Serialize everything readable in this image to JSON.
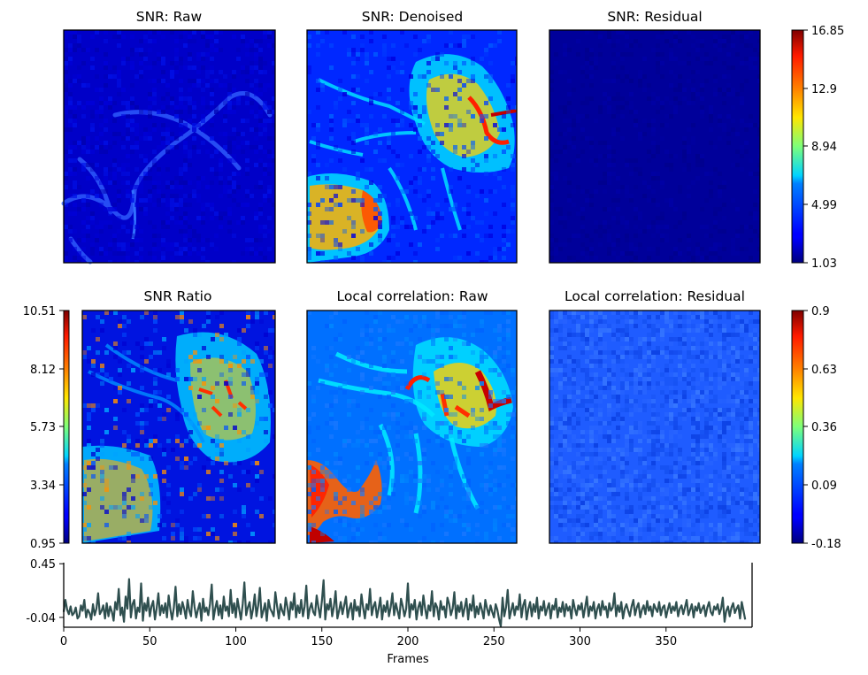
{
  "chart_data": [
    {
      "type": "heatmap",
      "title": "SNR: Raw",
      "colormap": "jet",
      "value_range": [
        1.03,
        16.85
      ],
      "pattern": "low-valued background with faint thin filament structure",
      "typical_value": 2.2
    },
    {
      "type": "heatmap",
      "title": "SNR: Denoised",
      "colormap": "jet",
      "value_range": [
        1.03,
        16.85
      ],
      "pattern": "bright filament network upper-right, large bright blob lower-left",
      "typical_value": 6.5
    },
    {
      "type": "heatmap",
      "title": "SNR: Residual",
      "colormap": "jet",
      "value_range": [
        1.03,
        16.85
      ],
      "pattern": "nearly uniform minimum",
      "typical_value": 1.1
    },
    {
      "type": "colorbar",
      "colormap": "jet",
      "ticks": [
        "16.85",
        "12.9",
        "8.94",
        "4.99",
        "1.03"
      ]
    },
    {
      "type": "heatmap",
      "title": "SNR Ratio",
      "colormap": "jet",
      "value_range": [
        0.95,
        10.51
      ],
      "colorbar_ticks": [
        "10.51",
        "8.12",
        "5.73",
        "3.34",
        "0.95"
      ],
      "pattern": "noisy speckled structure, bright lower-left and upper-right",
      "typical_value": 4.0
    },
    {
      "type": "heatmap",
      "title": "Local correlation: Raw",
      "colormap": "jet",
      "value_range": [
        -0.18,
        0.9
      ],
      "pattern": "smooth filament network, strongest in upper-right and lower-left",
      "typical_value": 0.3
    },
    {
      "type": "heatmap",
      "title": "Local correlation: Residual",
      "colormap": "jet",
      "value_range": [
        -0.18,
        0.9
      ],
      "pattern": "uniform noisy low correlation",
      "typical_value": 0.05
    },
    {
      "type": "colorbar",
      "colormap": "jet",
      "ticks": [
        "0.9",
        "0.63",
        "0.36",
        "0.09",
        "-0.18"
      ]
    },
    {
      "type": "line",
      "xlabel": "Frames",
      "ylabel": "",
      "xlim": [
        0,
        400
      ],
      "ylim": [
        -0.13,
        0.46
      ],
      "xticks": [
        "0",
        "50",
        "100",
        "150",
        "200",
        "250",
        "300",
        "350"
      ],
      "yticks": [
        "0.45",
        "-0.04"
      ],
      "color": "#2f4f4f",
      "series": [
        {
          "x_start": 0,
          "x_step": 1,
          "values": [
            0.01,
            0.12,
            0.03,
            -0.01,
            0.06,
            -0.02,
            0.0,
            0.05,
            -0.05,
            -0.03,
            0.07,
            0.02,
            0.12,
            -0.04,
            0.03,
            0.0,
            -0.06,
            0.08,
            -0.02,
            0.04,
            0.18,
            -0.01,
            0.02,
            0.07,
            -0.05,
            0.09,
            -0.03,
            0.06,
            0.01,
            -0.07,
            0.1,
            0.03,
            0.22,
            -0.02,
            0.05,
            -0.08,
            0.15,
            0.04,
            0.31,
            -0.04,
            0.08,
            0.12,
            -0.05,
            0.05,
            0.01,
            0.27,
            -0.07,
            0.09,
            0.02,
            0.14,
            -0.03,
            0.06,
            0.11,
            -0.06,
            0.04,
            0.18,
            -0.02,
            0.07,
            0.0,
            0.09,
            -0.04,
            0.16,
            0.03,
            -0.06,
            0.05,
            0.24,
            -0.03,
            0.08,
            -0.01,
            0.1,
            0.04,
            -0.05,
            0.12,
            0.02,
            -0.03,
            0.2,
            0.06,
            -0.04,
            0.03,
            0.09,
            -0.07,
            0.13,
            0.01,
            0.05,
            -0.02,
            0.08,
            0.26,
            -0.06,
            0.04,
            0.11,
            -0.02,
            0.07,
            -0.05,
            0.15,
            0.02,
            0.06,
            -0.03,
            0.21,
            0.0,
            0.09,
            -0.04,
            0.13,
            0.03,
            -0.06,
            0.08,
            0.28,
            -0.02,
            0.05,
            0.1,
            -0.05,
            0.04,
            0.17,
            -0.03,
            0.07,
            0.23,
            -0.04,
            0.02,
            0.09,
            -0.07,
            0.12,
            0.04,
            0.01,
            -0.03,
            0.19,
            0.06,
            -0.05,
            0.08,
            0.02,
            -0.02,
            0.14,
            0.05,
            -0.06,
            0.1,
            0.03,
            0.18,
            -0.04,
            0.07,
            0.0,
            0.12,
            -0.03,
            0.06,
            0.25,
            -0.05,
            0.04,
            0.09,
            0.01,
            -0.02,
            0.16,
            0.05,
            -0.04,
            0.11,
            0.3,
            -0.06,
            0.08,
            0.03,
            0.13,
            -0.03,
            0.06,
            0.2,
            -0.05,
            0.02,
            0.1,
            -0.01,
            0.07,
            0.15,
            -0.04,
            0.04,
            0.09,
            -0.06,
            0.12,
            0.02,
            0.06,
            -0.03,
            0.17,
            0.05,
            -0.05,
            0.08,
            0.03,
            0.22,
            -0.02,
            0.06,
            0.1,
            -0.04,
            0.04,
            0.14,
            -0.06,
            0.07,
            0.01,
            0.11,
            -0.03,
            0.05,
            0.18,
            -0.02,
            0.09,
            0.02,
            -0.05,
            0.13,
            0.06,
            -0.03,
            0.04,
            0.27,
            -0.04,
            0.08,
            0.03,
            0.12,
            -0.06,
            0.05,
            0.1,
            -0.02,
            0.16,
            0.04,
            -0.05,
            0.07,
            0.02,
            0.2,
            -0.03,
            0.09,
            0.05,
            -0.06,
            0.11,
            0.03,
            0.06,
            -0.04,
            0.14,
            0.08,
            -0.02,
            0.04,
            0.19,
            -0.05,
            0.07,
            0.01,
            0.1,
            -0.03,
            0.05,
            0.13,
            -0.06,
            0.08,
            0.02,
            0.16,
            -0.04,
            0.06,
            -0.01,
            0.09,
            0.03,
            -0.05,
            0.12,
            0.04,
            -0.02,
            0.07,
            0.01,
            -0.04,
            0.08,
            0.03,
            -0.06,
            -0.12,
            0.14,
            -0.03,
            0.05,
            0.21,
            -0.05,
            0.02,
            0.09,
            -0.02,
            0.06,
            0.03,
            0.17,
            -0.04,
            0.07,
            0.12,
            -0.06,
            0.04,
            0.1,
            -0.03,
            0.08,
            0.01,
            0.14,
            -0.05,
            0.06,
            0.02,
            0.11,
            -0.02,
            0.04,
            0.09,
            -0.05,
            0.07,
            0.03,
            0.13,
            -0.04,
            0.05,
            0.01,
            0.1,
            -0.03,
            0.08,
            0.02,
            0.06,
            -0.05,
            0.12,
            0.04,
            -0.02,
            0.07,
            0.03,
            0.09,
            -0.04,
            0.05,
            0.15,
            -0.03,
            0.06,
            0.02,
            0.1,
            -0.05,
            0.04,
            0.08,
            -0.02,
            0.11,
            0.03,
            0.06,
            -0.04,
            0.09,
            0.02,
            0.05,
            0.18,
            -0.03,
            0.07,
            0.01,
            0.1,
            -0.05,
            0.04,
            0.08,
            0.02,
            -0.03,
            0.06,
            0.12,
            -0.02,
            0.05,
            0.09,
            -0.04,
            0.03,
            0.07,
            -0.01,
            0.11,
            0.02,
            0.06,
            -0.03,
            0.08,
            0.04,
            0.01,
            0.1,
            -0.02,
            0.05,
            0.07,
            -0.04,
            0.03,
            0.09,
            0.0,
            0.06,
            0.02,
            0.1,
            -0.03,
            0.04,
            0.07,
            -0.01,
            0.05,
            0.12,
            -0.02,
            0.03,
            0.08,
            -0.04,
            0.06,
            0.02,
            0.09,
            0.0,
            0.04,
            0.07,
            -0.03,
            0.05,
            0.1,
            0.01,
            -0.02,
            0.06,
            0.03,
            0.08,
            -0.01,
            0.04,
            0.14,
            -0.08,
            0.02,
            0.06,
            -0.03,
            0.05,
            0.09,
            0.0,
            0.04,
            0.07,
            -0.05,
            0.1,
            0.02,
            -0.06
          ]
        }
      ]
    }
  ]
}
